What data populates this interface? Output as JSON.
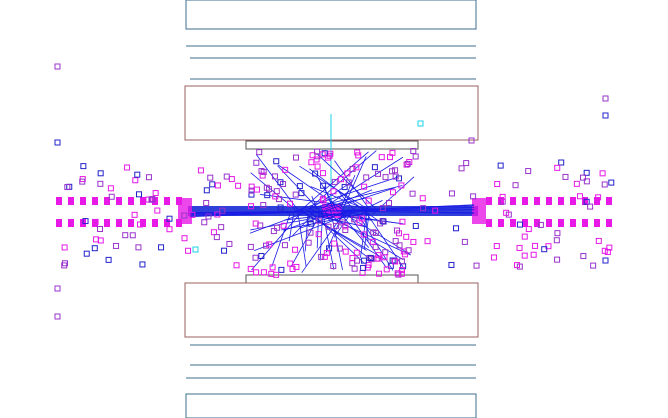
{
  "colors": {
    "frame": "#3d6e8e",
    "body_frame": "#9a6060",
    "track": "#1a1ae6",
    "hit_magenta": "#e619e6",
    "hit_purple": "#9933cc",
    "hit_blue": "#2222cc",
    "hit_cyan": "#19d2e6",
    "beam": "#2f3fd9"
  },
  "view": {
    "type": "event-display",
    "projection": "side-view",
    "has_text": false
  }
}
